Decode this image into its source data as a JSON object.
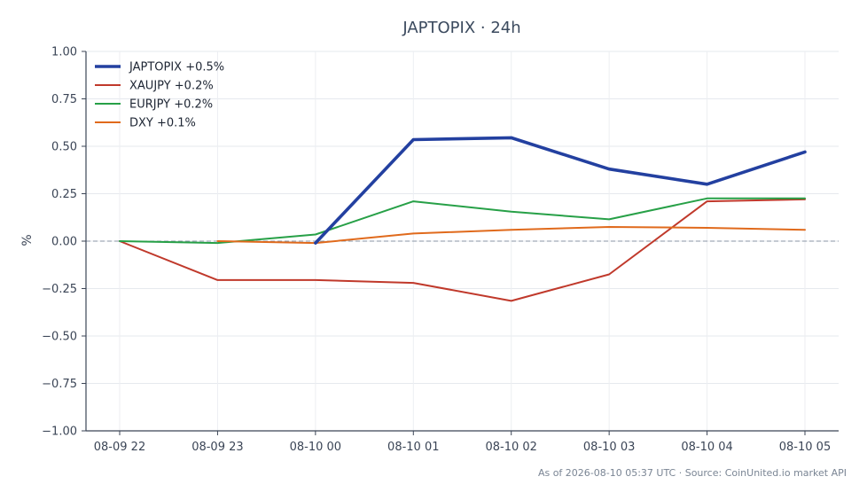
{
  "chart_data": {
    "type": "line",
    "title": "JAPTOPIX · 24h",
    "ylabel": "%",
    "xlabel": "",
    "x": [
      "08-09 22",
      "08-09 23",
      "08-10 00",
      "08-10 01",
      "08-10 02",
      "08-10 03",
      "08-10 04",
      "08-10 05"
    ],
    "ylim": [
      -1.0,
      1.0
    ],
    "yticks": [
      "1.00",
      "0.75",
      "0.50",
      "0.25",
      "0.00",
      "−0.25",
      "−0.50",
      "−0.75",
      "−1.00"
    ],
    "ytick_values": [
      1.0,
      0.75,
      0.5,
      0.25,
      0.0,
      -0.25,
      -0.5,
      -0.75,
      -1.0
    ],
    "grid": true,
    "zero_line": true,
    "legend_position": "top-left",
    "series": [
      {
        "name": "JAPTOPIX +0.5%",
        "color": "#2340a0",
        "emphasis": true,
        "values": [
          null,
          null,
          -0.01,
          0.535,
          0.545,
          0.38,
          0.3,
          0.47
        ]
      },
      {
        "name": "XAUJPY +0.2%",
        "color": "#c0392b",
        "emphasis": false,
        "values": [
          0.0,
          -0.205,
          -0.205,
          -0.22,
          -0.315,
          -0.175,
          0.21,
          0.22
        ]
      },
      {
        "name": "EURJPY +0.2%",
        "color": "#27a047",
        "emphasis": false,
        "values": [
          0.0,
          -0.01,
          0.035,
          0.21,
          0.155,
          0.115,
          0.225,
          0.225
        ]
      },
      {
        "name": "DXY +0.1%",
        "color": "#e06a1c",
        "emphasis": false,
        "values": [
          null,
          0.0,
          -0.01,
          0.04,
          0.06,
          0.075,
          0.07,
          0.06
        ]
      }
    ],
    "footer": "As of 2026-08-10 05:37 UTC · Source: CoinUnited.io market API"
  }
}
